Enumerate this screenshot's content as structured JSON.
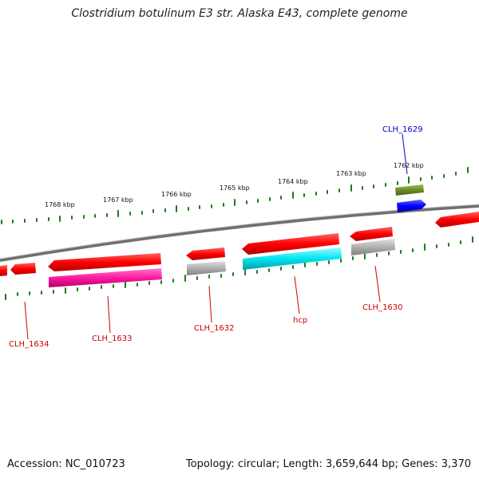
{
  "title": "Clostridium botulinum E3 str. Alaska E43, complete genome",
  "footer": {
    "accession": "Accession: NC_010723",
    "topology": "Topology: circular; Length: 3,659,644 bp; Genes: 3,370"
  },
  "ticks": [
    "1768 kbp",
    "1767 kbp",
    "1766 kbp",
    "1765 kbp",
    "1764 kbp",
    "1763 kbp",
    "1762 kbp"
  ],
  "genes": [
    {
      "label": "CLH_1634",
      "color": "#cc0000"
    },
    {
      "label": "CLH_1633",
      "color": "#cc0000"
    },
    {
      "label": "CLH_1632",
      "color": "#cc0000"
    },
    {
      "label": "hcp",
      "color": "#cc0000"
    },
    {
      "label": "CLH_1630",
      "color": "#cc0000"
    },
    {
      "label": "CLH_1629",
      "color": "#0000cc"
    }
  ],
  "colors": {
    "red": "#ff0000",
    "magenta": "#ff1aa0",
    "gray": "#b0b0b0",
    "cyan": "#00e5f0",
    "olive": "#6b8e23",
    "blue": "#0000ff",
    "tick_green": "#1a7a1a",
    "backbone": "#777777"
  }
}
